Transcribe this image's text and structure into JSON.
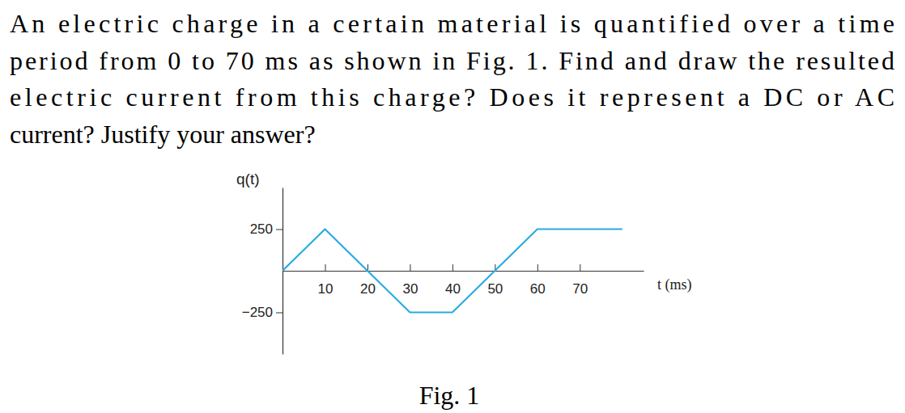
{
  "question_lines": [
    "An electric charge in a certain material is quantified over a time",
    "period from 0 to 70 ms as shown in Fig. 1. Find and draw the resulted",
    "electric current from this charge? Does it represent a DC or AC",
    "current? Justify your answer?"
  ],
  "caption": "Fig. 1",
  "chart_data": {
    "type": "line",
    "x": [
      0,
      10,
      20,
      30,
      40,
      50,
      60,
      80
    ],
    "values": [
      0,
      250,
      0,
      -250,
      -250,
      0,
      250,
      250
    ],
    "color": "#29abe2",
    "xlim": [
      0,
      85
    ],
    "ylim": [
      -500,
      500
    ],
    "xticks": [
      10,
      20,
      30,
      40,
      50,
      60,
      70
    ],
    "yticks": [
      {
        "value": -250,
        "label": "−250"
      },
      250
    ],
    "x_label": "t (ms)",
    "y_label": "q(t)",
    "grid": false
  }
}
